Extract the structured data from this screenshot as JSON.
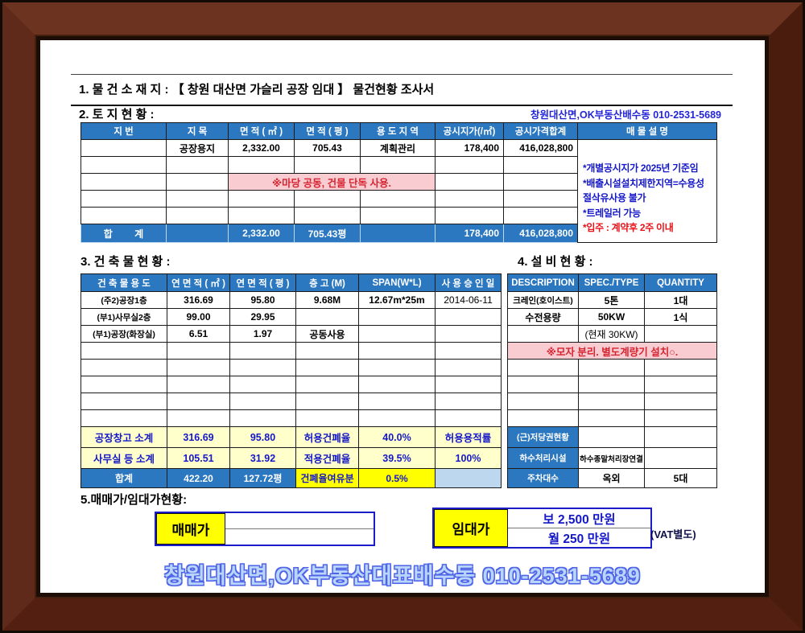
{
  "colors": {
    "header_blue": "#2b77c0",
    "note_pink_bg": "#f9ccd2",
    "note_red": "#e81118",
    "text_blue": "#1518c8",
    "summary_yellow_bg": "#ffffcc",
    "bright_yellow_bg": "#ffff00",
    "light_blue_cell": "#bdd7ee",
    "footer_fill": "#b9d6fa",
    "footer_outline": "#4f63e8",
    "frame_wood": "#5a2415"
  },
  "titles": {
    "sec1_label": "1. 물 건 소 재 지 :",
    "sec1_title": "【 창원 대산면 가슬리 공장 임대 】 물건현황 조사서",
    "sec2_label": "2. 토 지 현 황 :",
    "contact_top": "창원대산면,OK부동산배수동 010-2531-5689",
    "sec3_label": "3. 건 축 물 현 황 :",
    "sec4_label": "4. 설 비 현 황 :",
    "sec5_label": "5.매매가/임대가현황:",
    "footer": "창원대산면,OK부동산대표배수동 010-2531-5689"
  },
  "land": {
    "headers": [
      "지 번",
      "지 목",
      "면 적 ( ㎡ )",
      "면 적 ( 평 )",
      "용 도 지 역",
      "공시지가(/㎡)",
      "공시가격합계",
      "매 물 설 명"
    ],
    "row1": {
      "jimok": "공장용지",
      "area_m2": "2,332.00",
      "area_py": "705.43",
      "zone": "계획관리",
      "price_per_m2": "178,400",
      "price_total": "416,028,800"
    },
    "pink_note": "※마당 공동, 건물 단독 사용.",
    "desc_notes": [
      "*개별공시지가 2025년 기준임",
      "*배출시설설치제한지역=수용성",
      "절삭유사용 불가",
      "*트레일러 가능"
    ],
    "desc_note_red": "*입주 : 계약후 2주 이내",
    "total": {
      "label": "합 계",
      "area_m2": "2,332.00",
      "area_py": "705.43평",
      "price_per_m2": "178,400",
      "price_total": "416,028,800"
    }
  },
  "building": {
    "headers": [
      "건 축 물 용 도",
      "연 면 적 ( ㎡ )",
      "연 면 적 ( 평 )",
      "층 고 (M)",
      "SPAN(W*L)",
      "사 용 승 인 일"
    ],
    "rows": [
      [
        "(주2)공장1층",
        "316.69",
        "95.80",
        "9.68M",
        "12.67m*25m",
        "2014-06-11"
      ],
      [
        "(부1)사무실2층",
        "99.00",
        "29.95"
      ],
      [
        "(부1)공장(화장실)",
        "6.51",
        "1.97",
        "공동사용"
      ]
    ],
    "sum1": [
      "공장창고 소계",
      "316.69",
      "95.80",
      "허용건폐율",
      "40.0%",
      "허용용적률"
    ],
    "sum2": [
      "사무실 등 소계",
      "105.51",
      "31.92",
      "적용건폐율",
      "39.5%",
      "100%"
    ],
    "sum3": [
      "합계",
      "422.20",
      "127.72평",
      "건폐율여유분",
      "0.5%"
    ]
  },
  "equipment": {
    "headers": [
      "DESCRIPTION",
      "SPEC./TYPE",
      "QUANTITY"
    ],
    "rows": [
      [
        "크레인(호이스트)",
        "5톤",
        "1대"
      ],
      [
        "수전용량",
        "50KW",
        "1식"
      ],
      [
        "",
        "(현재 30KW)",
        ""
      ]
    ],
    "pink_note": "※모자 분리. 별도계량기 설치○.",
    "sum1_label": "(근)저당권현황",
    "sum2_label": "하수처리시설",
    "sum2_value": "하수종말처리장연결",
    "sum3_label": "주차대수",
    "sum3_value1": "옥외",
    "sum3_value2": "5대"
  },
  "price": {
    "sale_label": "매매가",
    "rent_label": "임대가",
    "rent_deposit": "보 2,500 만원",
    "rent_monthly": "월 250 만원",
    "vat_note": "(VAT별도)"
  }
}
